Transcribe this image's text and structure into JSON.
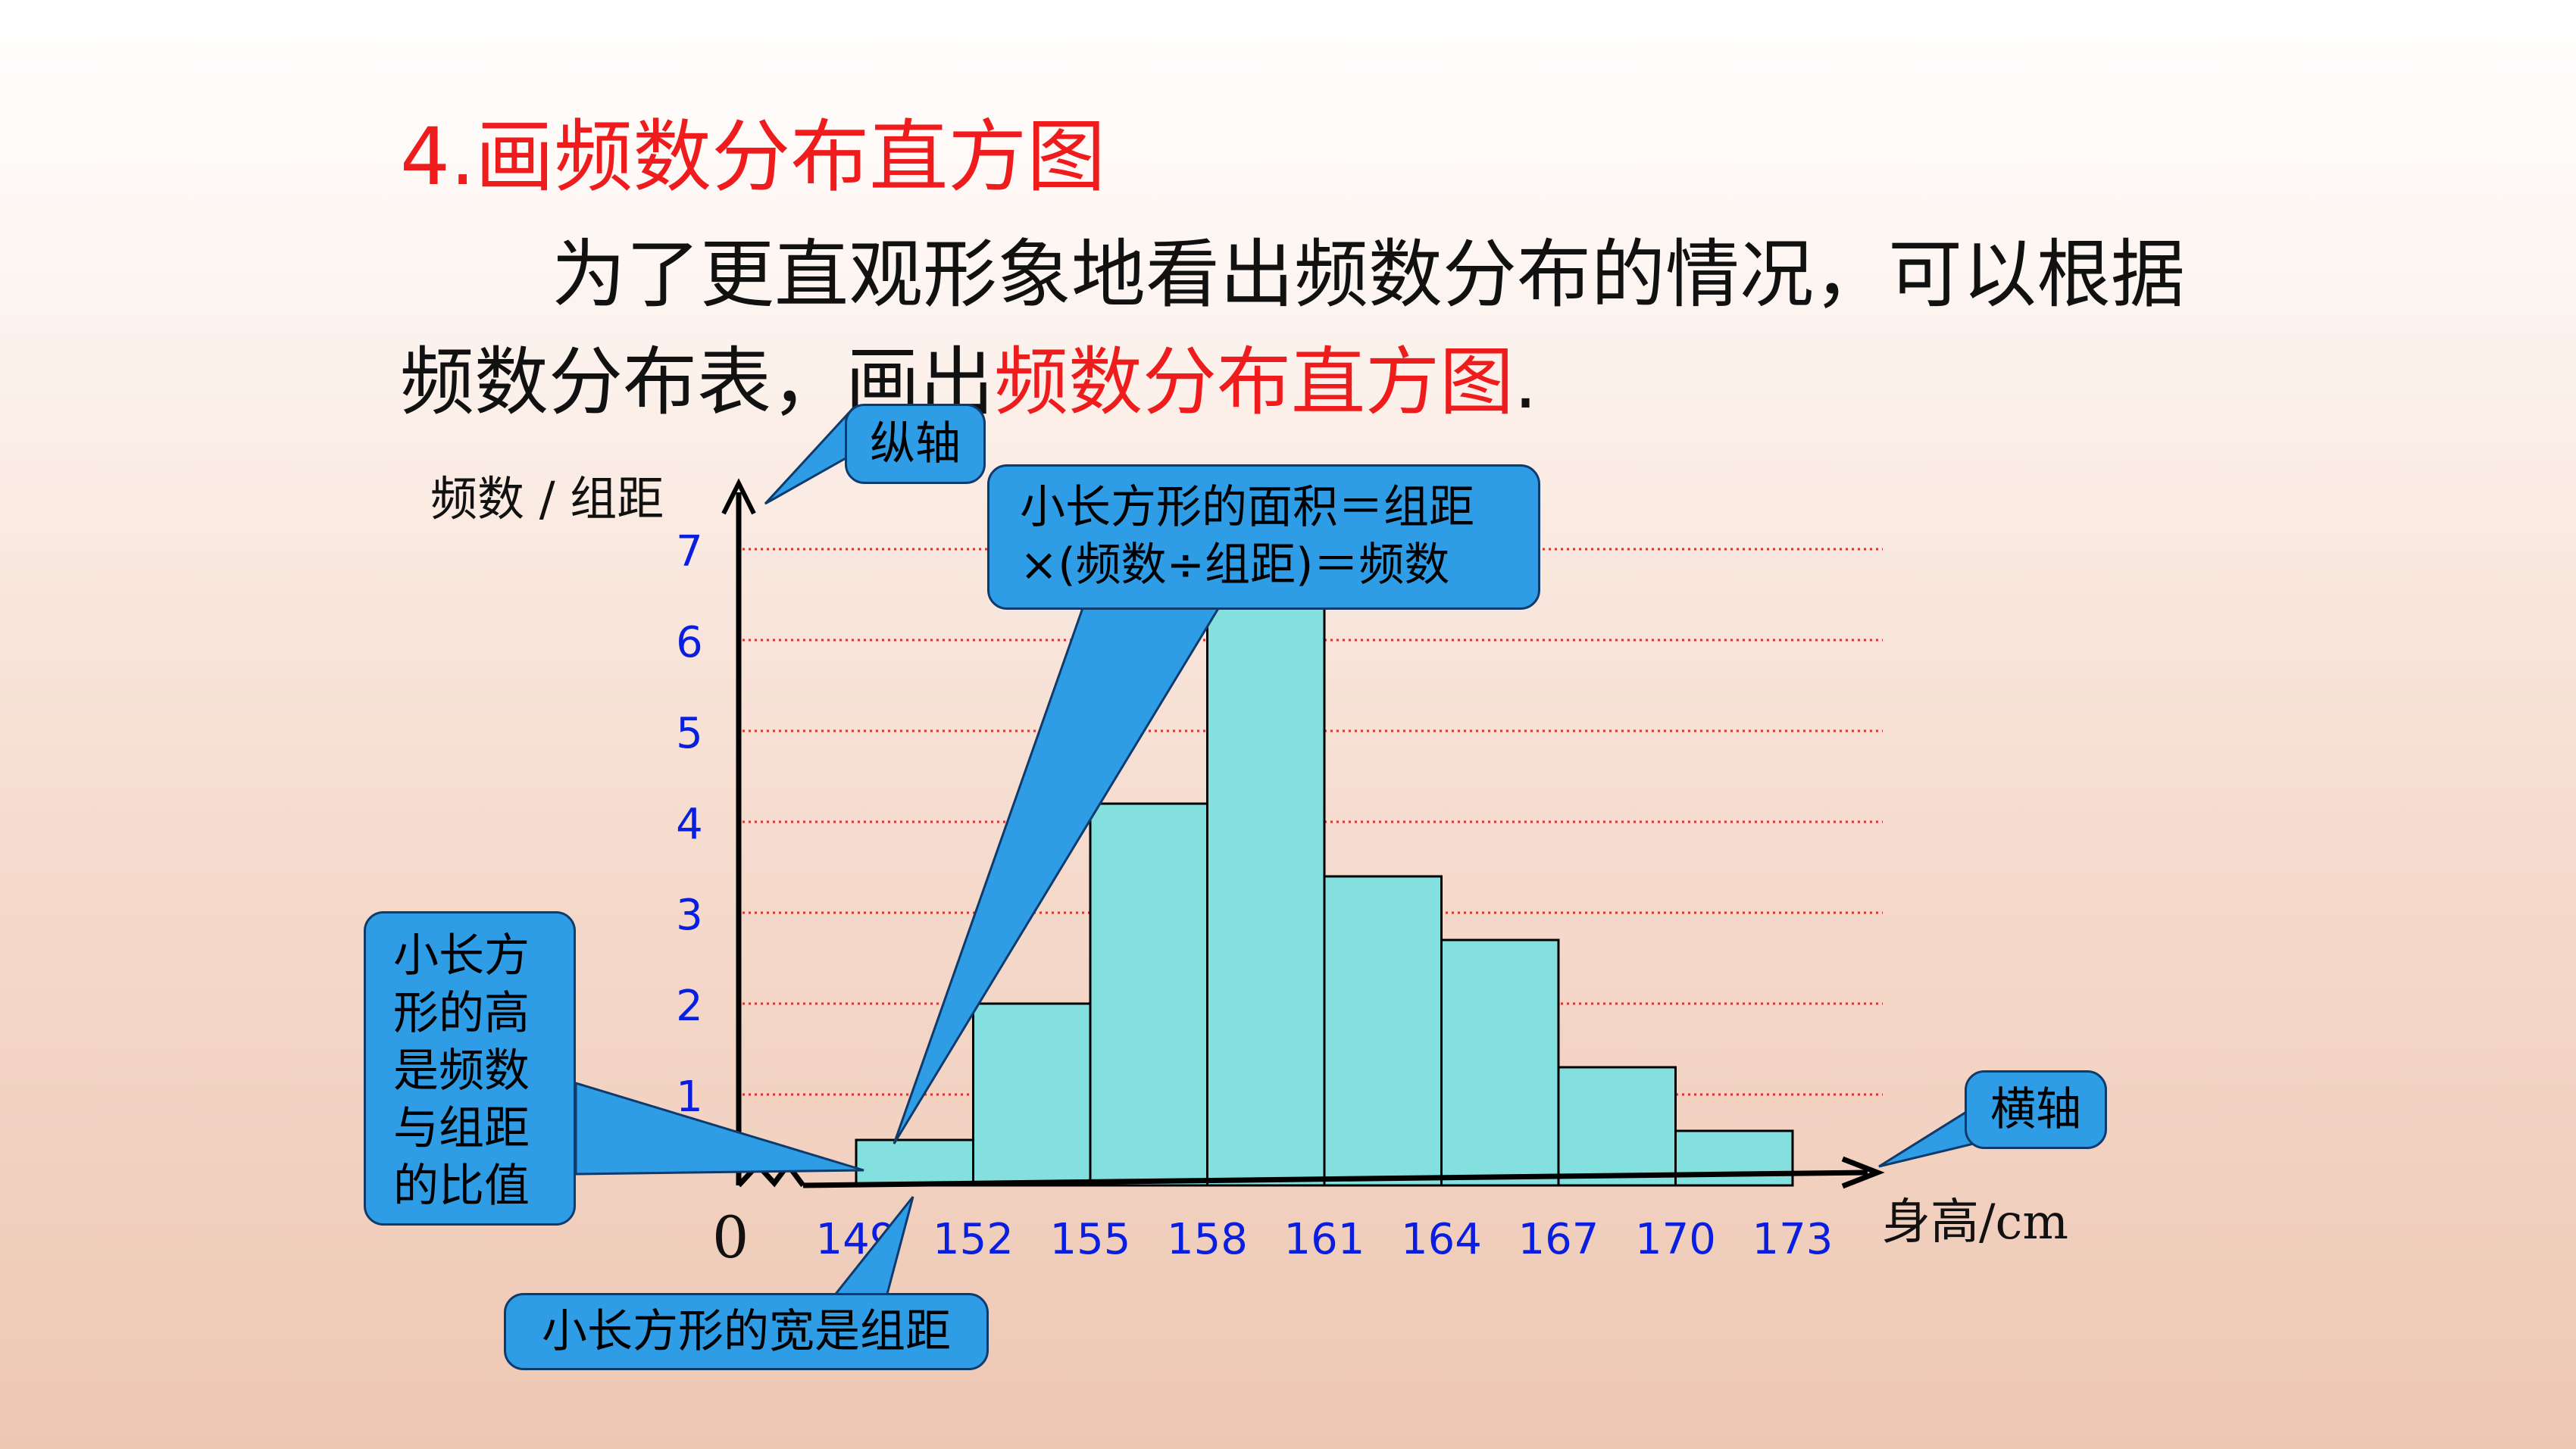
{
  "title": "4.画频数分布直方图",
  "intro": {
    "text_before": "为了更直观形象地看出频数分布的情况，可以根据频数分布表，画出",
    "highlight": "频数分布直方图",
    "text_after": "."
  },
  "callouts": {
    "vertical_axis": "纵轴",
    "horizontal_axis": "横轴",
    "area": "小长方形的面积＝组距×(频数÷组距)＝频数",
    "height": "小长方形的高是频数与组距的比值",
    "width": "小长方形的宽是组距"
  },
  "colors": {
    "title": "#ee1c1c",
    "bar_fill": "#84e0df",
    "callout_fill": "#2e9de6",
    "tick_label": "#0a1ee0",
    "gridline": "#e03030"
  },
  "chart_data": {
    "type": "bar",
    "subtype": "histogram",
    "ylabel": "频数 / 组距",
    "xlabel": "身高/cm",
    "origin_label": "0",
    "y_ticks": [
      1,
      2,
      3,
      4,
      5,
      6,
      7
    ],
    "ylim": [
      0,
      7.6
    ],
    "x_ticks": [
      149,
      152,
      155,
      158,
      161,
      164,
      167,
      170,
      173
    ],
    "bins": [
      {
        "from": 149,
        "to": 152,
        "value": 0.5
      },
      {
        "from": 152,
        "to": 155,
        "value": 2
      },
      {
        "from": 155,
        "to": 158,
        "value": 4.2
      },
      {
        "from": 158,
        "to": 161,
        "value": 6.6
      },
      {
        "from": 161,
        "to": 164,
        "value": 3.4
      },
      {
        "from": 164,
        "to": 167,
        "value": 2.7
      },
      {
        "from": 167,
        "to": 170,
        "value": 1.3
      },
      {
        "from": 170,
        "to": 173,
        "value": 0.6
      }
    ],
    "grid": true,
    "axis_break": true
  }
}
